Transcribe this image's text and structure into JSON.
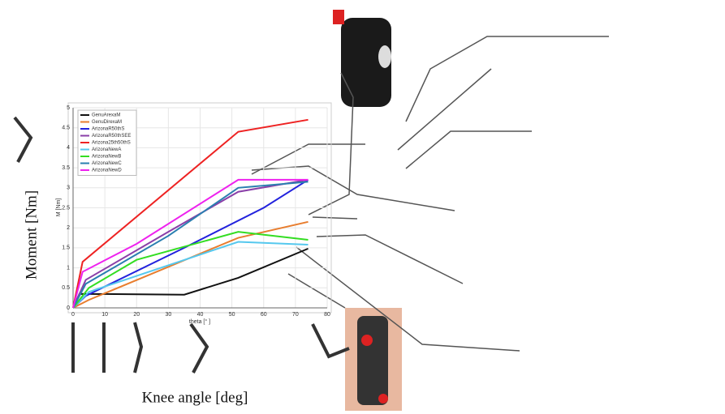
{
  "chart_data": {
    "type": "line",
    "x_label": "theta [° ]",
    "y_label": "M [Nm]",
    "annotations": [
      "Moment [Nm]",
      "Knee angle [deg]"
    ],
    "xlim": [
      0,
      80
    ],
    "xticks": [
      0,
      10,
      20,
      30,
      40,
      50,
      60,
      70,
      80
    ],
    "ylim": [
      0,
      5
    ],
    "yticks": [
      0,
      0.5,
      1,
      1.5,
      2,
      2.5,
      3,
      3.5,
      4,
      4.5,
      5
    ],
    "grid": true,
    "legend": "upper left",
    "series": [
      {
        "name": "GenuArexaM",
        "color": "#111111",
        "x": [
          0,
          2,
          35,
          52,
          74
        ],
        "values": [
          0,
          0.35,
          0.33,
          0.75,
          1.48
        ]
      },
      {
        "name": "GenuDirexaM",
        "color": "#e87d2e",
        "x": [
          0,
          5,
          52,
          74
        ],
        "values": [
          0,
          0.2,
          1.75,
          2.15
        ]
      },
      {
        "name": "ArizonaR50thS",
        "color": "#2222dd",
        "x": [
          0,
          4,
          35,
          60,
          74
        ],
        "values": [
          0,
          0.3,
          1.5,
          2.5,
          3.2
        ]
      },
      {
        "name": "ArizonaR50thSEE",
        "color": "#8a3fa8",
        "x": [
          0,
          4,
          30,
          52,
          74
        ],
        "values": [
          0,
          0.7,
          1.9,
          2.9,
          3.2
        ]
      },
      {
        "name": "Arizona25th50thS",
        "color": "#ee2222",
        "x": [
          0,
          3,
          52,
          74
        ],
        "values": [
          0,
          1.15,
          4.4,
          4.7
        ]
      },
      {
        "name": "ArizonaNewA",
        "color": "#55c8ee",
        "x": [
          0,
          5,
          52,
          74
        ],
        "values": [
          0,
          0.4,
          1.65,
          1.58
        ]
      },
      {
        "name": "ArizonaNewB",
        "color": "#33dd22",
        "x": [
          0,
          5,
          20,
          52,
          74
        ],
        "values": [
          0,
          0.5,
          1.2,
          1.9,
          1.7
        ]
      },
      {
        "name": "ArizonaNewC",
        "color": "#2a7fb0",
        "x": [
          0,
          4,
          30,
          52,
          74
        ],
        "values": [
          0,
          0.6,
          1.8,
          3.0,
          3.15
        ]
      },
      {
        "name": "ArizonaNewD",
        "color": "#ee22ee",
        "x": [
          0,
          3,
          20,
          52,
          74
        ],
        "values": [
          0,
          0.9,
          1.6,
          3.2,
          3.2
        ]
      }
    ]
  }
}
